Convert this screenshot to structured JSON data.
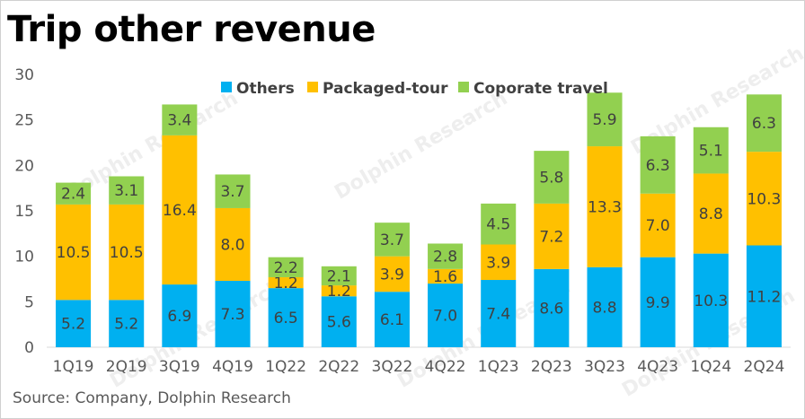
{
  "title": "Trip other revenue",
  "source": "Source: Company, Dolphin Research",
  "watermark": "Dolphin Research",
  "colors": {
    "Others": "#00b0f0",
    "Packaged-tour": "#ffc000",
    "Coporate travel": "#92d050"
  },
  "chart_data": {
    "type": "bar",
    "stacked": true,
    "categories": [
      "1Q19",
      "2Q19",
      "3Q19",
      "4Q19",
      "1Q22",
      "2Q22",
      "3Q22",
      "4Q22",
      "1Q23",
      "2Q23",
      "3Q23",
      "4Q23",
      "1Q24",
      "2Q24"
    ],
    "series": [
      {
        "name": "Others",
        "values": [
          5.2,
          5.2,
          6.9,
          7.3,
          6.5,
          5.6,
          6.1,
          7.0,
          7.4,
          8.6,
          8.8,
          9.9,
          10.3,
          11.2
        ]
      },
      {
        "name": "Packaged-tour",
        "values": [
          10.5,
          10.5,
          16.4,
          8.0,
          1.2,
          1.2,
          3.9,
          1.6,
          3.9,
          7.2,
          13.3,
          7.0,
          8.8,
          10.3
        ]
      },
      {
        "name": "Coporate travel",
        "values": [
          2.4,
          3.1,
          3.4,
          3.7,
          2.2,
          2.1,
          3.7,
          2.8,
          4.5,
          5.8,
          5.9,
          6.3,
          5.1,
          6.3
        ]
      }
    ],
    "ylim": [
      0,
      30
    ],
    "yticks": [
      0,
      5,
      10,
      15,
      20,
      25,
      30
    ],
    "legend_position": "top",
    "grid": false
  }
}
